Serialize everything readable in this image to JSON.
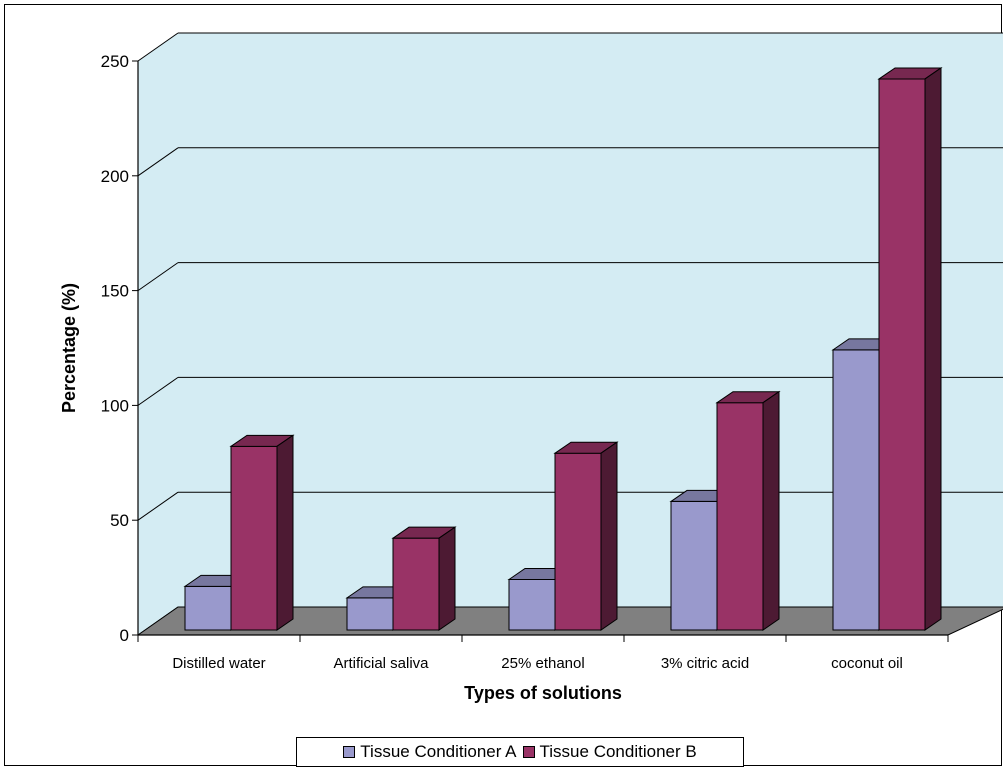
{
  "chart_data": {
    "type": "bar",
    "categories": [
      "Distilled water",
      "Artificial saliva",
      "25% ethanol",
      "3% citric acid",
      "coconut oil"
    ],
    "series": [
      {
        "name": "Tissue Conditioner A",
        "color": "#9999cc",
        "values": [
          19,
          14,
          22,
          56,
          122
        ]
      },
      {
        "name": "Tissue Conditioner B",
        "color": "#993366",
        "values": [
          80,
          40,
          77,
          99,
          240
        ]
      }
    ],
    "title": "",
    "xlabel": "Types of solutions",
    "ylabel": "Percentage (%)",
    "ylim": [
      0,
      250
    ],
    "yticks": [
      0,
      50,
      100,
      150,
      200,
      250
    ],
    "grid": true,
    "legend_position": "bottom",
    "wall_color": "#d4ecf3",
    "floor_color": "#808080"
  }
}
